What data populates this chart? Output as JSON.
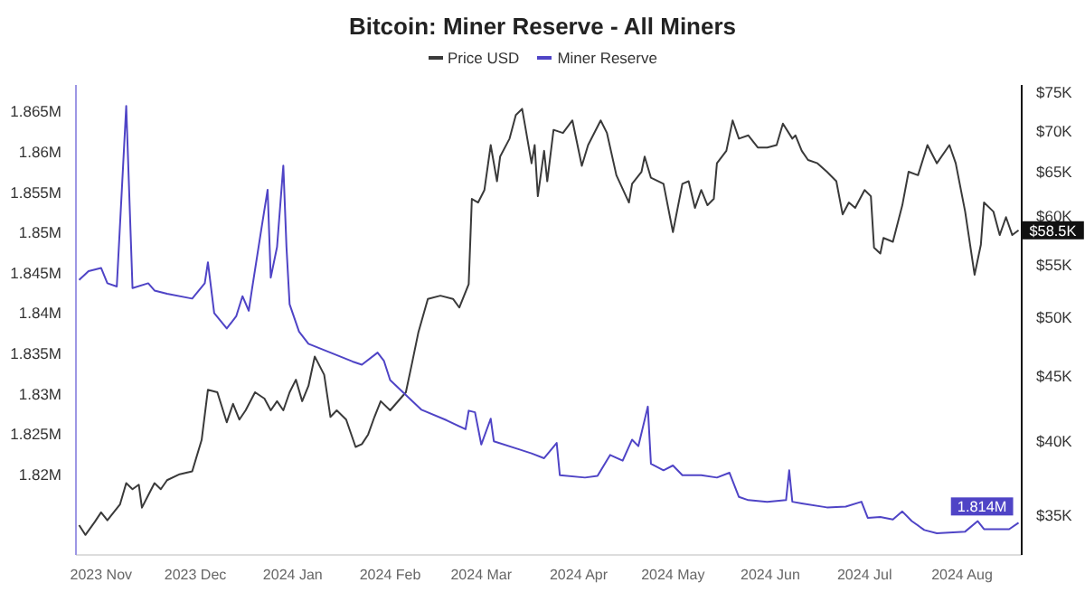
{
  "chart_data": {
    "type": "line",
    "title": "Bitcoin: Miner Reserve - All Miners",
    "legend": "top",
    "marker": "none",
    "log": "y2",
    "xlim": [
      "2023-10-24",
      "2024-08-20"
    ],
    "xticks": [
      {
        "value": "2023-11",
        "label": "2023 Nov"
      },
      {
        "value": "2023-12",
        "label": "2023 Dec"
      },
      {
        "value": "2024-01",
        "label": "2024 Jan"
      },
      {
        "value": "2024-02",
        "label": "2024 Feb"
      },
      {
        "value": "2024-03",
        "label": "2024 Mar"
      },
      {
        "value": "2024-04",
        "label": "2024 Apr"
      },
      {
        "value": "2024-05",
        "label": "2024 May"
      },
      {
        "value": "2024-06",
        "label": "2024 Jun"
      },
      {
        "value": "2024-07",
        "label": "2024 Jul"
      },
      {
        "value": "2024-08",
        "label": "2024 Aug"
      }
    ],
    "ylim": [
      1810000,
      1868300
    ],
    "yticks": [
      {
        "value": 1820000,
        "label": "1.82M"
      },
      {
        "value": 1825000,
        "label": "1.825M"
      },
      {
        "value": 1830000,
        "label": "1.83M"
      },
      {
        "value": 1835000,
        "label": "1.835M"
      },
      {
        "value": 1840000,
        "label": "1.84M"
      },
      {
        "value": 1845000,
        "label": "1.845M"
      },
      {
        "value": 1850000,
        "label": "1.85M"
      },
      {
        "value": 1855000,
        "label": "1.855M"
      },
      {
        "value": 1860000,
        "label": "1.86M"
      },
      {
        "value": 1865000,
        "label": "1.865M"
      }
    ],
    "y2lim": [
      32600,
      76000
    ],
    "y2ticks": [
      {
        "value": 35000,
        "label": "$35K"
      },
      {
        "value": 40000,
        "label": "$40K"
      },
      {
        "value": 45000,
        "label": "$45K"
      },
      {
        "value": 50000,
        "label": "$50K"
      },
      {
        "value": 55000,
        "label": "$55K"
      },
      {
        "value": 60000,
        "label": "$60K"
      },
      {
        "value": 65000,
        "label": "$65K"
      },
      {
        "value": 70000,
        "label": "$70K"
      },
      {
        "value": 75000,
        "label": "$75K"
      }
    ],
    "series": [
      {
        "name": "Price USD",
        "color": "#3a3a3a",
        "axis": "y2",
        "x": [
          "2023-10-25",
          "2023-10-27",
          "2023-10-30",
          "2023-11-01",
          "2023-11-03",
          "2023-11-07",
          "2023-11-09",
          "2023-11-11",
          "2023-11-13",
          "2023-11-14",
          "2023-11-16",
          "2023-11-18",
          "2023-11-20",
          "2023-11-22",
          "2023-11-26",
          "2023-11-30",
          "2023-12-03",
          "2023-12-05",
          "2023-12-08",
          "2023-12-11",
          "2023-12-13",
          "2023-12-15",
          "2023-12-17",
          "2023-12-20",
          "2023-12-23",
          "2023-12-25",
          "2023-12-27",
          "2023-12-29",
          "2023-12-31",
          "2024-01-02",
          "2024-01-04",
          "2024-01-06",
          "2024-01-08",
          "2024-01-09",
          "2024-01-11",
          "2024-01-13",
          "2024-01-15",
          "2024-01-18",
          "2024-01-21",
          "2024-01-23",
          "2024-01-25",
          "2024-01-27",
          "2024-01-29",
          "2024-02-01",
          "2024-02-06",
          "2024-02-08",
          "2024-02-10",
          "2024-02-13",
          "2024-02-17",
          "2024-02-21",
          "2024-02-23",
          "2024-02-26",
          "2024-02-27",
          "2024-02-29",
          "2024-03-02",
          "2024-03-04",
          "2024-03-06",
          "2024-03-07",
          "2024-03-10",
          "2024-03-12",
          "2024-03-14",
          "2024-03-15",
          "2024-03-17",
          "2024-03-18",
          "2024-03-19",
          "2024-03-21",
          "2024-03-22",
          "2024-03-24",
          "2024-03-27",
          "2024-03-30",
          "2024-04-02",
          "2024-04-04",
          "2024-04-08",
          "2024-04-10",
          "2024-04-13",
          "2024-04-17",
          "2024-04-18",
          "2024-04-21",
          "2024-04-22",
          "2024-04-24",
          "2024-04-28",
          "2024-05-01",
          "2024-05-04",
          "2024-05-06",
          "2024-05-08",
          "2024-05-10",
          "2024-05-12",
          "2024-05-14",
          "2024-05-15",
          "2024-05-18",
          "2024-05-20",
          "2024-05-22",
          "2024-05-25",
          "2024-05-28",
          "2024-05-31",
          "2024-06-03",
          "2024-06-05",
          "2024-06-08",
          "2024-06-09",
          "2024-06-11",
          "2024-06-13",
          "2024-06-16",
          "2024-06-19",
          "2024-06-22",
          "2024-06-24",
          "2024-06-26",
          "2024-06-28",
          "2024-07-01",
          "2024-07-03",
          "2024-07-04",
          "2024-07-06",
          "2024-07-07",
          "2024-07-10",
          "2024-07-13",
          "2024-07-15",
          "2024-07-18",
          "2024-07-21",
          "2024-07-24",
          "2024-07-28",
          "2024-07-30",
          "2024-08-02",
          "2024-08-05",
          "2024-08-07",
          "2024-08-08",
          "2024-08-11",
          "2024-08-13",
          "2024-08-15",
          "2024-08-17",
          "2024-08-19"
        ],
        "values": [
          34400,
          33800,
          34600,
          35200,
          34700,
          35700,
          37100,
          36700,
          37000,
          35500,
          36300,
          37100,
          36700,
          37300,
          37700,
          37900,
          40100,
          43900,
          43700,
          41400,
          42800,
          41600,
          42300,
          43700,
          43200,
          42300,
          43000,
          42300,
          43700,
          44700,
          43000,
          44200,
          46600,
          46100,
          45100,
          41800,
          42300,
          41600,
          39600,
          39800,
          40500,
          41800,
          43000,
          42300,
          43700,
          46100,
          48700,
          51700,
          52000,
          51700,
          50900,
          53100,
          61900,
          61500,
          62900,
          68200,
          63900,
          66800,
          69000,
          72000,
          72800,
          70500,
          66000,
          68200,
          62200,
          67500,
          63900,
          70100,
          69700,
          71300,
          65700,
          68200,
          71300,
          69700,
          64600,
          61500,
          63600,
          65000,
          66800,
          64300,
          63600,
          58300,
          63600,
          63900,
          60900,
          62900,
          61200,
          61900,
          66000,
          67500,
          71300,
          69000,
          69400,
          67900,
          67900,
          68200,
          70900,
          69000,
          69400,
          67500,
          66400,
          66000,
          65000,
          63900,
          60200,
          61500,
          60900,
          62900,
          62200,
          56700,
          56100,
          57700,
          57300,
          61200,
          65000,
          64600,
          68200,
          66000,
          68200,
          66000,
          60500,
          54000,
          57000,
          61500,
          60500,
          58000,
          59900,
          58000,
          58500
        ],
        "value_labels": [
          null,
          null,
          null,
          null,
          null,
          null,
          null,
          null,
          null,
          null,
          null,
          null,
          null,
          null,
          null,
          null,
          null,
          null,
          null,
          null,
          null,
          null,
          null,
          null,
          null,
          null,
          null,
          null,
          null,
          null,
          null,
          null,
          null,
          null,
          null,
          null,
          null,
          null,
          null,
          null,
          null,
          null,
          null,
          null,
          null,
          null,
          null,
          null,
          null,
          null,
          null,
          null,
          null,
          null,
          null,
          null,
          null,
          null,
          null,
          null,
          null,
          null,
          null,
          null,
          null,
          null,
          null,
          null,
          null,
          null,
          null,
          null,
          null,
          null,
          null,
          null,
          null,
          null,
          null,
          null,
          null,
          null,
          null,
          null,
          null,
          null,
          null,
          null,
          null,
          null,
          null,
          null,
          null,
          null,
          null,
          null,
          null,
          null,
          null,
          null,
          null,
          null,
          null,
          null,
          null,
          null,
          null,
          null,
          null,
          null,
          null,
          null,
          null,
          null,
          null,
          null,
          null,
          null,
          null,
          null,
          null,
          null,
          null,
          null,
          null,
          null,
          null,
          null,
          "$58.5K"
        ]
      },
      {
        "name": "Miner Reserve",
        "color": "#4f44c6",
        "x": [
          "2023-10-25",
          "2023-10-28",
          "2023-11-01",
          "2023-11-03",
          "2023-11-06",
          "2023-11-09",
          "2023-11-11",
          "2023-11-16",
          "2023-11-18",
          "2023-11-22",
          "2023-11-30",
          "2023-12-04",
          "2023-12-05",
          "2023-12-07",
          "2023-12-11",
          "2023-12-14",
          "2023-12-16",
          "2023-12-18",
          "2023-12-19",
          "2023-12-22",
          "2023-12-24",
          "2023-12-25",
          "2023-12-27",
          "2023-12-29",
          "2023-12-30",
          "2023-12-31",
          "2024-01-03",
          "2024-01-06",
          "2024-01-13",
          "2024-01-20",
          "2024-01-23",
          "2024-01-28",
          "2024-01-30",
          "2024-02-01",
          "2024-02-05",
          "2024-02-11",
          "2024-02-19",
          "2024-02-25",
          "2024-02-26",
          "2024-02-28",
          "2024-03-01",
          "2024-03-04",
          "2024-03-05",
          "2024-03-13",
          "2024-03-17",
          "2024-03-21",
          "2024-03-25",
          "2024-03-26",
          "2024-04-03",
          "2024-04-07",
          "2024-04-11",
          "2024-04-15",
          "2024-04-18",
          "2024-04-20",
          "2024-04-23",
          "2024-04-24",
          "2024-04-28",
          "2024-05-01",
          "2024-05-04",
          "2024-05-10",
          "2024-05-15",
          "2024-05-19",
          "2024-05-22",
          "2024-05-25",
          "2024-05-31",
          "2024-06-06",
          "2024-06-07",
          "2024-06-08",
          "2024-06-11",
          "2024-06-19",
          "2024-06-25",
          "2024-06-30",
          "2024-07-02",
          "2024-07-06",
          "2024-07-10",
          "2024-07-13",
          "2024-07-16",
          "2024-07-20",
          "2024-07-24",
          "2024-08-02",
          "2024-08-06",
          "2024-08-08",
          "2024-08-16",
          "2024-08-19"
        ],
        "values": [
          1844100,
          1845200,
          1845600,
          1843700,
          1843300,
          1865700,
          1843100,
          1843700,
          1842800,
          1842400,
          1841800,
          1843700,
          1846300,
          1840000,
          1838100,
          1839600,
          1842100,
          1840300,
          1842900,
          1850400,
          1855300,
          1844400,
          1848200,
          1858300,
          1848200,
          1841100,
          1837700,
          1836200,
          1835100,
          1834000,
          1833600,
          1835100,
          1834100,
          1831700,
          1830200,
          1828000,
          1826700,
          1825600,
          1827900,
          1827700,
          1823700,
          1826900,
          1824100,
          1823100,
          1822600,
          1822000,
          1823900,
          1819900,
          1819600,
          1819800,
          1822400,
          1821700,
          1824300,
          1823500,
          1828400,
          1821300,
          1820500,
          1821100,
          1819900,
          1819900,
          1819600,
          1820200,
          1817200,
          1816800,
          1816600,
          1816800,
          1820500,
          1816600,
          1816400,
          1815900,
          1816000,
          1816600,
          1814600,
          1814700,
          1814400,
          1815400,
          1814200,
          1813100,
          1812700,
          1812900,
          1814200,
          1813200,
          1813200,
          1814000
        ],
        "value_labels": [
          null,
          null,
          null,
          null,
          null,
          null,
          null,
          null,
          null,
          null,
          null,
          null,
          null,
          null,
          null,
          null,
          null,
          null,
          null,
          null,
          null,
          null,
          null,
          null,
          null,
          null,
          null,
          null,
          null,
          null,
          null,
          null,
          null,
          null,
          null,
          null,
          null,
          null,
          null,
          null,
          null,
          null,
          null,
          null,
          null,
          null,
          null,
          null,
          null,
          null,
          null,
          null,
          null,
          null,
          null,
          null,
          null,
          null,
          null,
          null,
          null,
          null,
          null,
          null,
          null,
          null,
          null,
          null,
          null,
          null,
          null,
          null,
          null,
          null,
          null,
          null,
          null,
          null,
          null,
          null,
          null,
          null,
          null,
          "1.814M"
        ]
      }
    ]
  }
}
